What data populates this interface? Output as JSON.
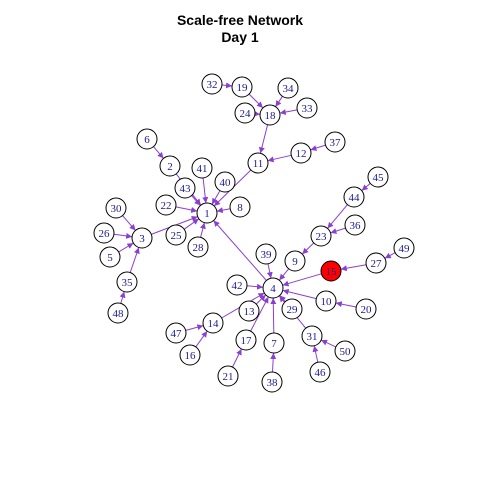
{
  "title": {
    "line1": "Scale-free Network",
    "line2": "Day 1"
  },
  "colors": {
    "edge": "#8a3fd1",
    "node_fill": "#ffffff",
    "node_stroke": "#000000",
    "highlight_fill": "#ff0000",
    "label": "#1a1a8c"
  },
  "highlighted_node": "15",
  "nodes": [
    "1",
    "2",
    "3",
    "4",
    "5",
    "6",
    "7",
    "8",
    "9",
    "10",
    "11",
    "12",
    "13",
    "14",
    "15",
    "16",
    "17",
    "18",
    "19",
    "20",
    "21",
    "22",
    "23",
    "24",
    "25",
    "26",
    "27",
    "28",
    "29",
    "30",
    "31",
    "32",
    "33",
    "34",
    "35",
    "36",
    "37",
    "38",
    "39",
    "40",
    "41",
    "42",
    "43",
    "44",
    "45",
    "46",
    "47",
    "48",
    "49",
    "50"
  ],
  "edges": [
    [
      "2",
      "1"
    ],
    [
      "3",
      "1"
    ],
    [
      "4",
      "1"
    ],
    [
      "8",
      "1"
    ],
    [
      "11",
      "1"
    ],
    [
      "22",
      "1"
    ],
    [
      "25",
      "1"
    ],
    [
      "28",
      "1"
    ],
    [
      "40",
      "1"
    ],
    [
      "41",
      "1"
    ],
    [
      "43",
      "1"
    ],
    [
      "6",
      "2"
    ],
    [
      "5",
      "3"
    ],
    [
      "26",
      "3"
    ],
    [
      "30",
      "3"
    ],
    [
      "35",
      "3"
    ],
    [
      "7",
      "4"
    ],
    [
      "9",
      "4"
    ],
    [
      "10",
      "4"
    ],
    [
      "13",
      "4"
    ],
    [
      "14",
      "4"
    ],
    [
      "15",
      "4"
    ],
    [
      "17",
      "4"
    ],
    [
      "29",
      "4"
    ],
    [
      "31",
      "4"
    ],
    [
      "39",
      "4"
    ],
    [
      "42",
      "4"
    ],
    [
      "12",
      "11"
    ],
    [
      "18",
      "11"
    ],
    [
      "37",
      "12"
    ],
    [
      "47",
      "14"
    ],
    [
      "16",
      "14"
    ],
    [
      "27",
      "15"
    ],
    [
      "19",
      "18"
    ],
    [
      "24",
      "18"
    ],
    [
      "33",
      "18"
    ],
    [
      "34",
      "18"
    ],
    [
      "32",
      "19"
    ],
    [
      "20",
      "10"
    ],
    [
      "21",
      "17"
    ],
    [
      "38",
      "7"
    ],
    [
      "23",
      "9"
    ],
    [
      "44",
      "23"
    ],
    [
      "36",
      "23"
    ],
    [
      "45",
      "44"
    ],
    [
      "46",
      "31"
    ],
    [
      "50",
      "31"
    ],
    [
      "48",
      "35"
    ],
    [
      "49",
      "27"
    ]
  ]
}
